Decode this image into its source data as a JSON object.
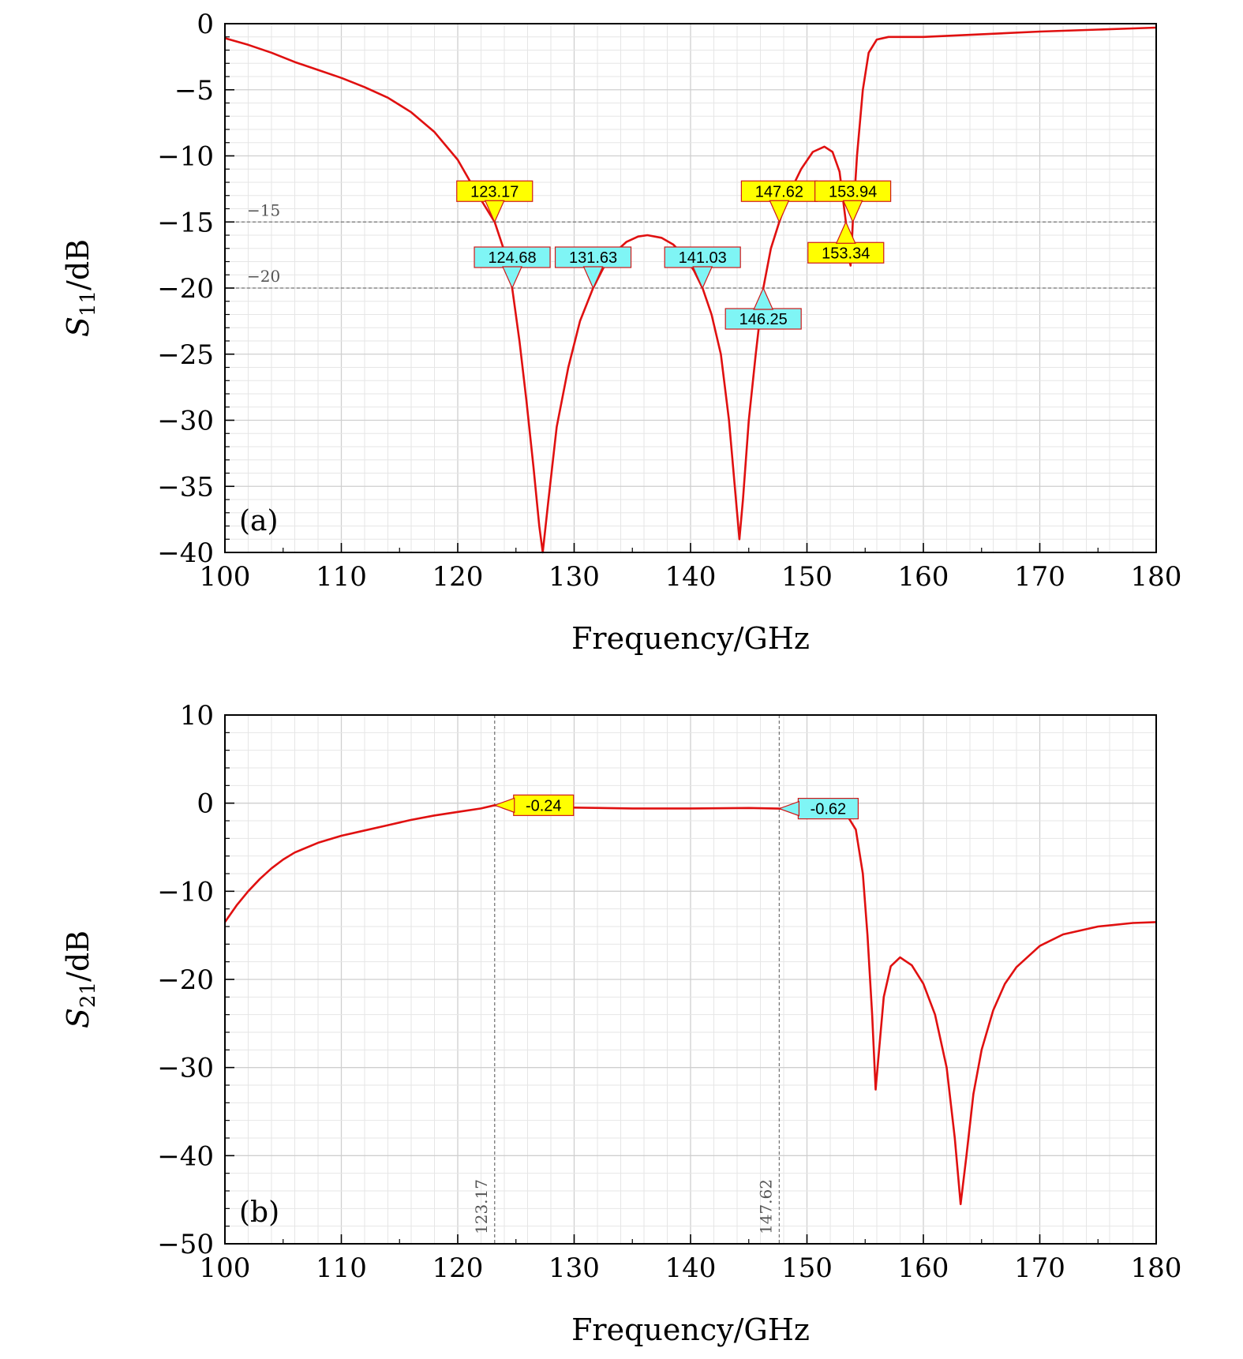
{
  "chart_data": [
    {
      "type": "line",
      "panel_label": "(a)",
      "xlabel": "Frequency/GHz",
      "ylabel": {
        "base": "S",
        "sub": "11",
        "rest": "/dB"
      },
      "xlim": [
        100,
        180
      ],
      "ylim": [
        -40,
        0
      ],
      "xticks": [
        100,
        110,
        120,
        130,
        140,
        150,
        160,
        170,
        180
      ],
      "yticks": [
        0,
        -5,
        -10,
        -15,
        -20,
        -25,
        -30,
        -35,
        -40
      ],
      "grid": true,
      "series_color": "#e01010",
      "reference_lines": [
        {
          "value": -15,
          "label": "−15"
        },
        {
          "value": -20,
          "label": "−20"
        }
      ],
      "series": [
        {
          "points": [
            [
              100,
              -1.1
            ],
            [
              102,
              -1.6
            ],
            [
              104,
              -2.2
            ],
            [
              106,
              -2.9
            ],
            [
              108,
              -3.5
            ],
            [
              110,
              -4.1
            ],
            [
              112,
              -4.8
            ],
            [
              114,
              -5.6
            ],
            [
              116,
              -6.7
            ],
            [
              118,
              -8.2
            ],
            [
              120,
              -10.3
            ],
            [
              121.5,
              -12.6
            ],
            [
              123.17,
              -15
            ],
            [
              124,
              -17.2
            ],
            [
              124.68,
              -20
            ],
            [
              125.3,
              -24
            ],
            [
              125.9,
              -28.5
            ],
            [
              126.5,
              -33.5
            ],
            [
              127.0,
              -38
            ],
            [
              127.3,
              -40
            ],
            [
              127.8,
              -36
            ],
            [
              128.5,
              -30.5
            ],
            [
              129.5,
              -26
            ],
            [
              130.5,
              -22.5
            ],
            [
              131.63,
              -20
            ],
            [
              132.5,
              -18.5
            ],
            [
              133.5,
              -17.3
            ],
            [
              134.5,
              -16.5
            ],
            [
              135.5,
              -16.1
            ],
            [
              136.3,
              -16.0
            ],
            [
              137.5,
              -16.2
            ],
            [
              138.5,
              -16.7
            ],
            [
              139.5,
              -17.6
            ],
            [
              140.3,
              -18.7
            ],
            [
              141.03,
              -20
            ],
            [
              141.8,
              -22
            ],
            [
              142.6,
              -25
            ],
            [
              143.3,
              -30
            ],
            [
              143.9,
              -36
            ],
            [
              144.2,
              -39
            ],
            [
              144.5,
              -36
            ],
            [
              145.0,
              -30
            ],
            [
              145.6,
              -25
            ],
            [
              146.25,
              -20
            ],
            [
              146.9,
              -17
            ],
            [
              147.62,
              -15
            ],
            [
              148.5,
              -12.8
            ],
            [
              149.5,
              -11
            ],
            [
              150.5,
              -9.7
            ],
            [
              151.5,
              -9.3
            ],
            [
              152.2,
              -9.7
            ],
            [
              152.8,
              -11.2
            ],
            [
              153.34,
              -15
            ],
            [
              153.6,
              -17.8
            ],
            [
              153.75,
              -18.3
            ],
            [
              153.94,
              -15
            ],
            [
              154.3,
              -10
            ],
            [
              154.8,
              -5
            ],
            [
              155.3,
              -2.2
            ],
            [
              156,
              -1.2
            ],
            [
              157,
              -1.0
            ],
            [
              160,
              -1.0
            ],
            [
              165,
              -0.8
            ],
            [
              170,
              -0.6
            ],
            [
              175,
              -0.45
            ],
            [
              180,
              -0.3
            ]
          ]
        }
      ],
      "markers": [
        {
          "x": 123.17,
          "y": -15,
          "label": "123.17",
          "style": "yellow",
          "dir": "down"
        },
        {
          "x": 124.68,
          "y": -20,
          "label": "124.68",
          "style": "cyan",
          "dir": "down"
        },
        {
          "x": 131.63,
          "y": -20,
          "label": "131.63",
          "style": "cyan",
          "dir": "down"
        },
        {
          "x": 141.03,
          "y": -20,
          "label": "141.03",
          "style": "cyan",
          "dir": "down"
        },
        {
          "x": 146.25,
          "y": -20,
          "label": "146.25",
          "style": "cyan",
          "dir": "up"
        },
        {
          "x": 147.62,
          "y": -15,
          "label": "147.62",
          "style": "yellow",
          "dir": "down"
        },
        {
          "x": 153.94,
          "y": -15,
          "label": "153.94",
          "style": "yellow",
          "dir": "down"
        },
        {
          "x": 153.34,
          "y": -15,
          "label": "153.34",
          "style": "yellow",
          "dir": "up"
        }
      ]
    },
    {
      "type": "line",
      "panel_label": "(b)",
      "xlabel": "Frequency/GHz",
      "ylabel": {
        "base": "S",
        "sub": "21",
        "rest": "/dB"
      },
      "xlim": [
        100,
        180
      ],
      "ylim": [
        -50,
        10
      ],
      "xticks": [
        100,
        110,
        120,
        130,
        140,
        150,
        160,
        170,
        180
      ],
      "yticks": [
        10,
        0,
        -10,
        -20,
        -30,
        -40,
        -50
      ],
      "grid": true,
      "series_color": "#e01010",
      "vertical_lines": [
        {
          "value": 123.17,
          "label": "123.17"
        },
        {
          "value": 147.62,
          "label": "147.62"
        }
      ],
      "series": [
        {
          "points": [
            [
              100,
              -13.5
            ],
            [
              101,
              -11.6
            ],
            [
              102,
              -10.0
            ],
            [
              103,
              -8.6
            ],
            [
              104,
              -7.4
            ],
            [
              105,
              -6.4
            ],
            [
              106,
              -5.6
            ],
            [
              108,
              -4.5
            ],
            [
              110,
              -3.7
            ],
            [
              112,
              -3.1
            ],
            [
              114,
              -2.5
            ],
            [
              116,
              -1.9
            ],
            [
              118,
              -1.4
            ],
            [
              120,
              -1.0
            ],
            [
              122,
              -0.6
            ],
            [
              123.17,
              -0.24
            ],
            [
              125,
              -0.35
            ],
            [
              130,
              -0.5
            ],
            [
              135,
              -0.6
            ],
            [
              140,
              -0.6
            ],
            [
              145,
              -0.55
            ],
            [
              147.62,
              -0.62
            ],
            [
              150,
              -0.8
            ],
            [
              152,
              -1.0
            ],
            [
              153.5,
              -1.5
            ],
            [
              154.2,
              -3
            ],
            [
              154.8,
              -8
            ],
            [
              155.2,
              -15
            ],
            [
              155.6,
              -24
            ],
            [
              155.9,
              -32.5
            ],
            [
              156.2,
              -28
            ],
            [
              156.6,
              -22
            ],
            [
              157.2,
              -18.5
            ],
            [
              158,
              -17.5
            ],
            [
              159,
              -18.4
            ],
            [
              160,
              -20.5
            ],
            [
              161,
              -24
            ],
            [
              162,
              -30
            ],
            [
              162.7,
              -38
            ],
            [
              163.2,
              -45.5
            ],
            [
              163.7,
              -40
            ],
            [
              164.3,
              -33
            ],
            [
              165,
              -28
            ],
            [
              166,
              -23.5
            ],
            [
              167,
              -20.5
            ],
            [
              168,
              -18.6
            ],
            [
              170,
              -16.2
            ],
            [
              172,
              -14.9
            ],
            [
              175,
              -14.0
            ],
            [
              178,
              -13.6
            ],
            [
              180,
              -13.5
            ]
          ]
        }
      ],
      "markers": [
        {
          "x": 123.17,
          "y": -0.24,
          "label": "-0.24",
          "style": "yellow",
          "dir": "left"
        },
        {
          "x": 147.62,
          "y": -0.62,
          "label": "-0.62",
          "style": "cyan",
          "dir": "left"
        }
      ]
    }
  ]
}
